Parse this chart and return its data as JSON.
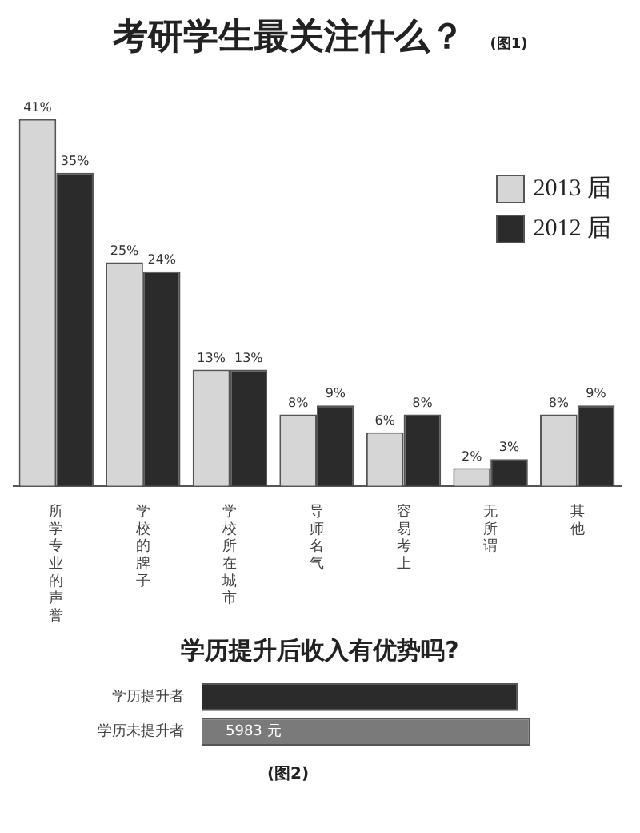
{
  "chart_data": [
    {
      "type": "bar",
      "title": "考研学生最关注什么？",
      "annotations": [
        "(图1)"
      ],
      "categories": [
        "所学专业的声誉",
        "学校的牌子",
        "学校所在城市",
        "导师名气",
        "容易考上",
        "无所谓",
        "其他"
      ],
      "series": [
        {
          "name": "2013 届",
          "color": "#d6d6d6",
          "values": [
            41,
            25,
            13,
            8,
            6,
            2,
            8
          ],
          "value_labels": [
            "41%",
            "25%",
            "13%",
            "8%",
            "6%",
            "2%",
            "8%"
          ]
        },
        {
          "name": "2012 届",
          "color": "#2b2b2b",
          "values": [
            35,
            24,
            13,
            9,
            8,
            3,
            9
          ],
          "value_labels": [
            "35%",
            "24%",
            "13%",
            "9%",
            "8%",
            "3%",
            "9%"
          ]
        }
      ],
      "legend": "top right"
    },
    {
      "type": "bar",
      "orientation": "horizontal",
      "title": "学历提升后收入有优势吗?",
      "annotations": [
        "(图2)"
      ],
      "categories": [
        "学历提升者",
        "学历未提升者"
      ],
      "values": [
        5763,
        5983
      ],
      "colors": [
        "#2b2b2b",
        "#7a7a7a"
      ],
      "value_labels": [
        null,
        "5983 元"
      ]
    }
  ]
}
